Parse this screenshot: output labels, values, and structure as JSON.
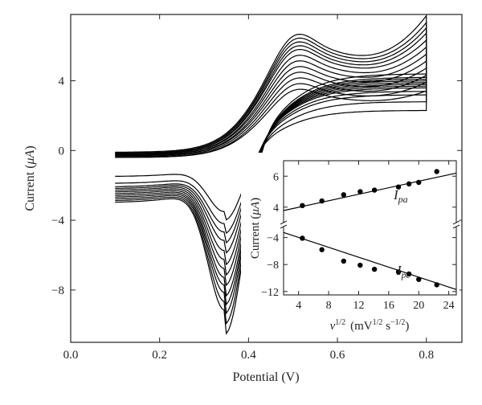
{
  "chart_data": [
    {
      "type": "line",
      "title": "",
      "xlabel": "Potential (V)",
      "ylabel_prefix": "Current (",
      "ylabel_unit": "μA",
      "ylabel_suffix": ")",
      "xlim": [
        0.0,
        0.88
      ],
      "ylim": [
        -11,
        7.8
      ],
      "xticks": [
        0.0,
        0.2,
        0.4,
        0.6,
        0.8
      ],
      "xtick_labels": [
        "0.0",
        "0.2",
        "0.4",
        "0.6",
        "0.8"
      ],
      "yticks": [
        -8,
        -4,
        0,
        4
      ],
      "ytick_labels": [
        "−8",
        "−4",
        "0",
        "4"
      ],
      "grid": false,
      "legend": "none",
      "line_color": "#000000",
      "curve_model": {
        "e_start": 0.1,
        "e_end": 0.8,
        "e_anodic_peak": 0.5,
        "e_cathodic_peak": 0.35
      },
      "series": [
        {
          "start_current": -0.4,
          "anodic_peak": 3.3,
          "end_forward": 3.4,
          "end_reverse": 2.3,
          "cathodic_peak": -4.2,
          "return_end": -1.5
        },
        {
          "start_current": -0.4,
          "anodic_peak": 3.6,
          "end_forward": 3.9,
          "end_reverse": 2.8,
          "cathodic_peak": -5.0,
          "return_end": -1.9
        },
        {
          "start_current": -0.35,
          "anodic_peak": 3.9,
          "end_forward": 4.3,
          "end_reverse": 3.2,
          "cathodic_peak": -5.6,
          "return_end": -2.1
        },
        {
          "start_current": -0.3,
          "anodic_peak": 4.2,
          "end_forward": 4.7,
          "end_reverse": 3.4,
          "cathodic_peak": -6.2,
          "return_end": -2.2
        },
        {
          "start_current": -0.3,
          "anodic_peak": 4.5,
          "end_forward": 5.1,
          "end_reverse": 3.6,
          "cathodic_peak": -6.9,
          "return_end": -2.3
        },
        {
          "start_current": -0.25,
          "anodic_peak": 4.8,
          "end_forward": 5.5,
          "end_reverse": 3.7,
          "cathodic_peak": -7.5,
          "return_end": -2.4
        },
        {
          "start_current": -0.25,
          "anodic_peak": 5.1,
          "end_forward": 5.9,
          "end_reverse": 3.8,
          "cathodic_peak": -8.1,
          "return_end": -2.5
        },
        {
          "start_current": -0.2,
          "anodic_peak": 5.4,
          "end_forward": 6.3,
          "end_reverse": 3.9,
          "cathodic_peak": -8.7,
          "return_end": -2.6
        },
        {
          "start_current": -0.2,
          "anodic_peak": 5.6,
          "end_forward": 6.7,
          "end_reverse": 4.0,
          "cathodic_peak": -9.2,
          "return_end": -2.7
        },
        {
          "start_current": -0.15,
          "anodic_peak": 5.8,
          "end_forward": 7.0,
          "end_reverse": 4.1,
          "cathodic_peak": -9.7,
          "return_end": -2.8
        },
        {
          "start_current": -0.15,
          "anodic_peak": 6.0,
          "end_forward": 7.3,
          "end_reverse": 4.2,
          "cathodic_peak": -10.3,
          "return_end": -2.9
        },
        {
          "start_current": -0.1,
          "anodic_peak": 6.2,
          "end_forward": 7.7,
          "end_reverse": 4.4,
          "cathodic_peak": -10.9,
          "return_end": -3.0
        }
      ]
    },
    {
      "type": "scatter",
      "title": "",
      "xlabel_base": "ν",
      "xlabel_exp": "1/2",
      "xlabel_unit": "(mV",
      "xlabel_unit_exp1": "1/2",
      "xlabel_unit_mid": " s",
      "xlabel_unit_exp2": "−1/2",
      "xlabel_unit_end": ")",
      "ylabel_prefix": "Current (",
      "ylabel_unit": "μA",
      "ylabel_suffix": ")",
      "xlim": [
        2,
        25
      ],
      "xticks": [
        4,
        8,
        12,
        16,
        20,
        24
      ],
      "xtick_labels": [
        "4",
        "8",
        "12",
        "16",
        "20",
        "24"
      ],
      "broken_y_axis": true,
      "upper_ylim": [
        3,
        7
      ],
      "upper_yticks": [
        4,
        6
      ],
      "upper_ytick_labels": [
        "4",
        "6"
      ],
      "lower_ylim": [
        -12.5,
        -2.5
      ],
      "lower_yticks": [
        -4,
        -8,
        -12
      ],
      "lower_ytick_labels": [
        "−4",
        "−8",
        "−12"
      ],
      "series": [
        {
          "name": "I",
          "name_sub": "pa",
          "x": [
            4.5,
            7.1,
            10.0,
            12.2,
            14.1,
            17.3,
            18.7,
            20.0,
            22.4
          ],
          "y": [
            4.1,
            4.4,
            4.8,
            5.0,
            5.1,
            5.3,
            5.5,
            5.6,
            6.3
          ],
          "fit": {
            "x": [
              2,
              25
            ],
            "y": [
              3.78,
              6.2
            ]
          }
        },
        {
          "name": "I",
          "name_sub": "pc",
          "x": [
            4.5,
            7.1,
            10.0,
            12.2,
            14.1,
            17.3,
            18.7,
            20.0,
            22.4
          ],
          "y": [
            -4.1,
            -5.8,
            -7.5,
            -8.1,
            -8.7,
            -9.1,
            -9.4,
            -10.2,
            -11.0
          ],
          "fit": {
            "x": [
              2,
              25
            ],
            "y": [
              -3.25,
              -11.7
            ]
          }
        }
      ]
    }
  ]
}
